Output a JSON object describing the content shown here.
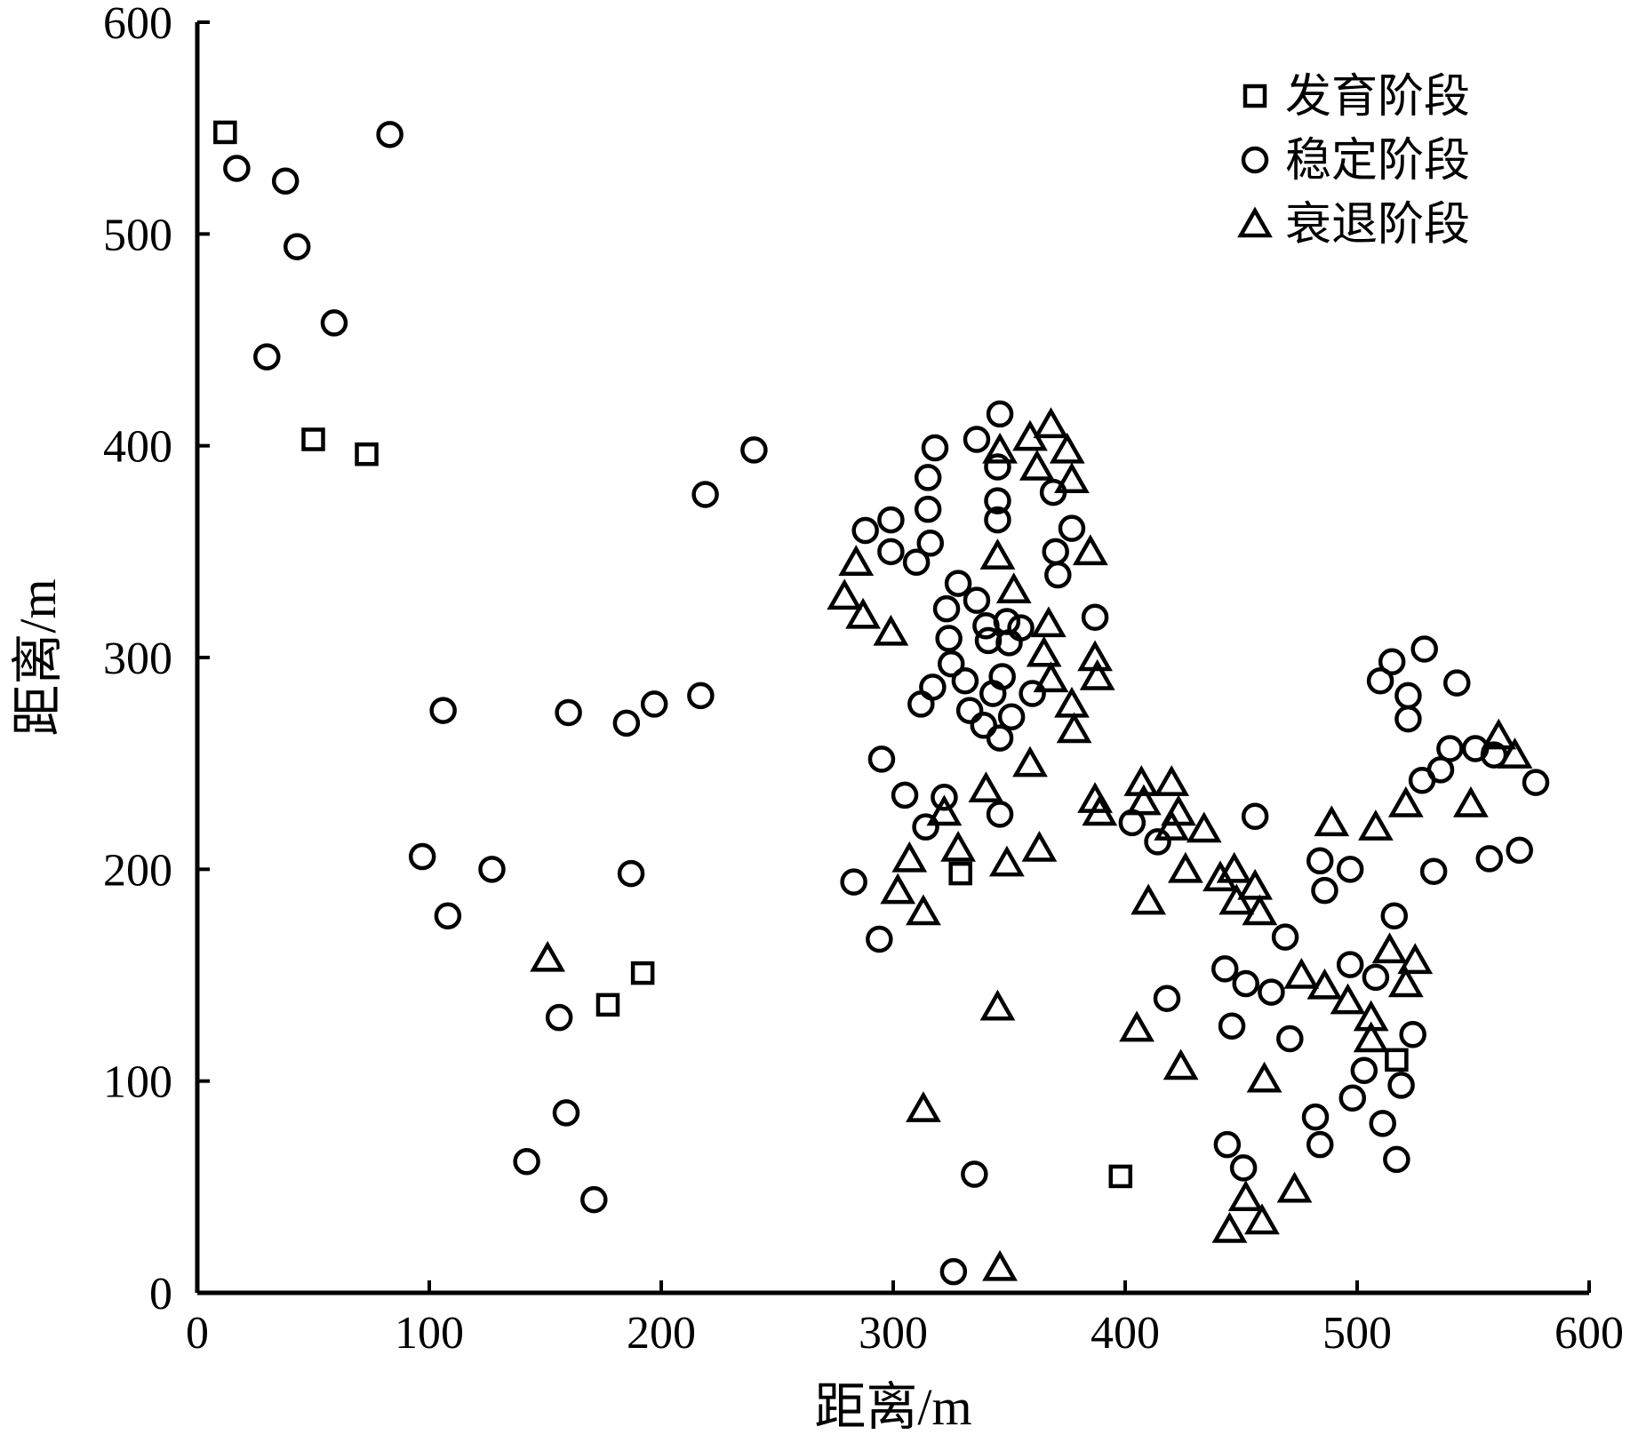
{
  "chart_data": {
    "type": "scatter",
    "title": "",
    "xlabel": "距离/m",
    "ylabel": "距离/m",
    "xlim": [
      0,
      600
    ],
    "ylim": [
      0,
      600
    ],
    "xticks": [
      "0",
      "100",
      "200",
      "300",
      "400",
      "500",
      "600"
    ],
    "yticks": [
      "0",
      "100",
      "200",
      "300",
      "400",
      "500",
      "600"
    ],
    "grid": false,
    "legend_position": "top-right",
    "series": [
      {
        "name": "发育阶段",
        "marker": "square",
        "points": [
          [
            12,
            548
          ],
          [
            50,
            403
          ],
          [
            73,
            396
          ],
          [
            177,
            136
          ],
          [
            192,
            151
          ],
          [
            329,
            198
          ],
          [
            398,
            55
          ],
          [
            517,
            110
          ]
        ]
      },
      {
        "name": "稳定阶段",
        "marker": "circle",
        "points": [
          [
            17,
            531
          ],
          [
            38,
            525
          ],
          [
            43,
            494
          ],
          [
            59,
            458
          ],
          [
            30,
            442
          ],
          [
            83,
            547
          ],
          [
            106,
            275
          ],
          [
            97,
            206
          ],
          [
            108,
            178
          ],
          [
            127,
            200
          ],
          [
            142,
            62
          ],
          [
            156,
            130
          ],
          [
            159,
            85
          ],
          [
            160,
            274
          ],
          [
            171,
            44
          ],
          [
            185,
            269
          ],
          [
            187,
            198
          ],
          [
            197,
            278
          ],
          [
            217,
            282
          ],
          [
            219,
            377
          ],
          [
            240,
            398
          ],
          [
            283,
            194
          ],
          [
            288,
            360
          ],
          [
            294,
            167
          ],
          [
            295,
            252
          ],
          [
            299,
            365
          ],
          [
            299,
            350
          ],
          [
            305,
            235
          ],
          [
            310,
            345
          ],
          [
            312,
            278
          ],
          [
            314,
            220
          ],
          [
            315,
            385
          ],
          [
            315,
            370
          ],
          [
            316,
            354
          ],
          [
            317,
            286
          ],
          [
            318,
            399
          ],
          [
            322,
            234
          ],
          [
            323,
            323
          ],
          [
            324,
            309
          ],
          [
            325,
            297
          ],
          [
            326,
            10
          ],
          [
            328,
            335
          ],
          [
            331,
            289
          ],
          [
            333,
            275
          ],
          [
            335,
            56
          ],
          [
            336,
            403
          ],
          [
            336,
            327
          ],
          [
            339,
            268
          ],
          [
            340,
            315
          ],
          [
            341,
            308
          ],
          [
            343,
            283
          ],
          [
            345,
            365
          ],
          [
            345,
            374
          ],
          [
            345,
            390
          ],
          [
            346,
            415
          ],
          [
            346,
            262
          ],
          [
            346,
            226
          ],
          [
            347,
            291
          ],
          [
            349,
            317
          ],
          [
            350,
            307
          ],
          [
            351,
            272
          ],
          [
            355,
            314
          ],
          [
            360,
            283
          ],
          [
            369,
            378
          ],
          [
            370,
            350
          ],
          [
            371,
            339
          ],
          [
            377,
            361
          ],
          [
            387,
            319
          ],
          [
            403,
            222
          ],
          [
            414,
            213
          ],
          [
            418,
            139
          ],
          [
            443,
            153
          ],
          [
            444,
            70
          ],
          [
            446,
            126
          ],
          [
            451,
            59
          ],
          [
            452,
            146
          ],
          [
            456,
            225
          ],
          [
            463,
            142
          ],
          [
            469,
            168
          ],
          [
            471,
            120
          ],
          [
            482,
            83
          ],
          [
            484,
            204
          ],
          [
            484,
            70
          ],
          [
            486,
            190
          ],
          [
            497,
            155
          ],
          [
            497,
            200
          ],
          [
            498,
            92
          ],
          [
            503,
            105
          ],
          [
            508,
            149
          ],
          [
            510,
            289
          ],
          [
            511,
            80
          ],
          [
            515,
            298
          ],
          [
            516,
            178
          ],
          [
            517,
            63
          ],
          [
            519,
            98
          ],
          [
            522,
            282
          ],
          [
            522,
            271
          ],
          [
            524,
            122
          ],
          [
            528,
            242
          ],
          [
            529,
            304
          ],
          [
            533,
            199
          ],
          [
            536,
            247
          ],
          [
            540,
            257
          ],
          [
            543,
            288
          ],
          [
            551,
            257
          ],
          [
            557,
            205
          ],
          [
            559,
            254
          ],
          [
            570,
            209
          ],
          [
            577,
            241
          ]
        ]
      },
      {
        "name": "衰退阶段",
        "marker": "triangle",
        "points": [
          [
            151,
            158
          ],
          [
            279,
            329
          ],
          [
            284,
            345
          ],
          [
            287,
            320
          ],
          [
            299,
            312
          ],
          [
            302,
            190
          ],
          [
            307,
            205
          ],
          [
            313,
            180
          ],
          [
            313,
            87
          ],
          [
            322,
            227
          ],
          [
            328,
            210
          ],
          [
            340,
            238
          ],
          [
            345,
            135
          ],
          [
            345,
            348
          ],
          [
            346,
            398
          ],
          [
            346,
            12
          ],
          [
            349,
            203
          ],
          [
            352,
            332
          ],
          [
            359,
            250
          ],
          [
            359,
            404
          ],
          [
            362,
            390
          ],
          [
            363,
            210
          ],
          [
            365,
            302
          ],
          [
            367,
            316
          ],
          [
            368,
            290
          ],
          [
            368,
            410
          ],
          [
            375,
            398
          ],
          [
            377,
            384
          ],
          [
            377,
            278
          ],
          [
            378,
            266
          ],
          [
            385,
            350
          ],
          [
            387,
            300
          ],
          [
            388,
            291
          ],
          [
            387,
            233
          ],
          [
            389,
            227
          ],
          [
            405,
            125
          ],
          [
            407,
            241
          ],
          [
            408,
            232
          ],
          [
            410,
            185
          ],
          [
            420,
            241
          ],
          [
            420,
            220
          ],
          [
            423,
            227
          ],
          [
            424,
            107
          ],
          [
            426,
            200
          ],
          [
            434,
            219
          ],
          [
            441,
            196
          ],
          [
            445,
            30
          ],
          [
            447,
            200
          ],
          [
            448,
            185
          ],
          [
            452,
            45
          ],
          [
            456,
            192
          ],
          [
            458,
            180
          ],
          [
            459,
            34
          ],
          [
            460,
            101
          ],
          [
            473,
            49
          ],
          [
            476,
            150
          ],
          [
            486,
            145
          ],
          [
            489,
            222
          ],
          [
            496,
            138
          ],
          [
            506,
            130
          ],
          [
            506,
            120
          ],
          [
            508,
            220
          ],
          [
            514,
            162
          ],
          [
            521,
            231
          ],
          [
            521,
            146
          ],
          [
            525,
            157
          ],
          [
            549,
            231
          ],
          [
            561,
            263
          ],
          [
            568,
            254
          ]
        ]
      }
    ]
  }
}
